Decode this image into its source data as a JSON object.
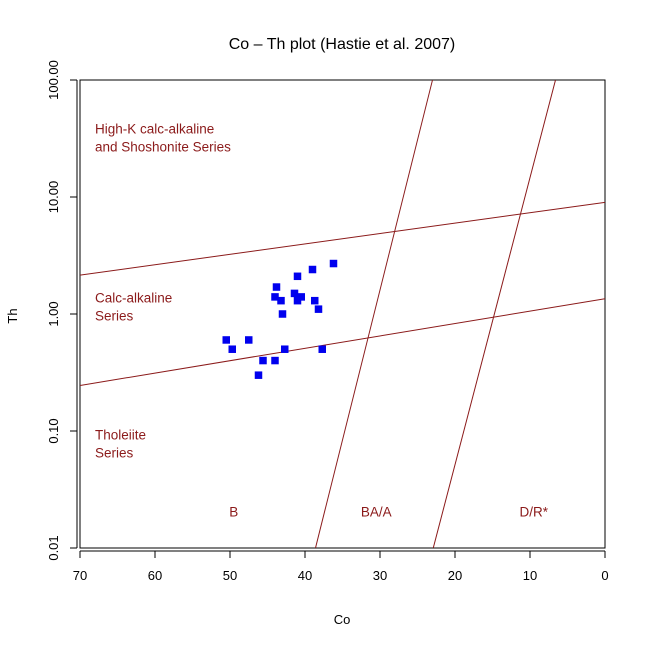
{
  "chart_data": {
    "type": "scatter",
    "title": "Co – Th plot (Hastie et al. 2007)",
    "xlabel": "Co",
    "ylabel": "Th",
    "xlim": [
      70,
      0
    ],
    "ylim": [
      0.01,
      100
    ],
    "y_scale": "log",
    "x_ticks": [
      70,
      60,
      50,
      40,
      30,
      20,
      10,
      0
    ],
    "x_tick_labels": [
      "70",
      "60",
      "50",
      "40",
      "30",
      "20",
      "10",
      "0"
    ],
    "y_ticks": [
      0.01,
      0.1,
      1,
      10,
      100
    ],
    "y_tick_labels": [
      "0.01",
      "0.10",
      "1.00",
      "10.00",
      "100.00"
    ],
    "grid": false,
    "region_labels": [
      {
        "lines": [
          "High-K calc-alkaline",
          "and Shoshonite Series"
        ],
        "x": 68.0,
        "y": 35
      },
      {
        "lines": [
          "Calc-alkaline",
          "Series"
        ],
        "x": 68.0,
        "y": 1.25
      },
      {
        "lines": [
          "Tholeiite",
          "Series"
        ],
        "x": 68.0,
        "y": 0.085
      },
      {
        "lines": [
          "B"
        ],
        "x": 49.5,
        "y": 0.0185
      },
      {
        "lines": [
          "BA/A"
        ],
        "x": 30.5,
        "y": 0.0185
      },
      {
        "lines": [
          "D/R*"
        ],
        "x": 9.5,
        "y": 0.0185
      }
    ],
    "boundaries": [
      {
        "x1": 70,
        "y1": 2.15,
        "x2": 0,
        "y2": 9.0
      },
      {
        "x1": 70,
        "y1": 0.245,
        "x2": 0,
        "y2": 1.35
      },
      {
        "x1": 38.6,
        "y1": 0.01,
        "x2": 23.0,
        "y2": 100
      },
      {
        "x1": 22.9,
        "y1": 0.01,
        "x2": 6.6,
        "y2": 100
      }
    ],
    "series": [
      {
        "marker": "square",
        "color": "#0000ee",
        "points": [
          {
            "x": 36.2,
            "y": 2.7
          },
          {
            "x": 39.0,
            "y": 2.4
          },
          {
            "x": 41.0,
            "y": 2.1
          },
          {
            "x": 43.8,
            "y": 1.7
          },
          {
            "x": 41.4,
            "y": 1.5
          },
          {
            "x": 40.5,
            "y": 1.4
          },
          {
            "x": 44.0,
            "y": 1.4
          },
          {
            "x": 43.2,
            "y": 1.3
          },
          {
            "x": 41.0,
            "y": 1.3
          },
          {
            "x": 38.7,
            "y": 1.3
          },
          {
            "x": 38.2,
            "y": 1.1
          },
          {
            "x": 43.0,
            "y": 1.0
          },
          {
            "x": 50.5,
            "y": 0.6
          },
          {
            "x": 47.5,
            "y": 0.6
          },
          {
            "x": 49.7,
            "y": 0.5
          },
          {
            "x": 42.7,
            "y": 0.5
          },
          {
            "x": 37.7,
            "y": 0.5
          },
          {
            "x": 45.6,
            "y": 0.4
          },
          {
            "x": 44.0,
            "y": 0.4
          },
          {
            "x": 46.2,
            "y": 0.3
          }
        ]
      }
    ]
  }
}
